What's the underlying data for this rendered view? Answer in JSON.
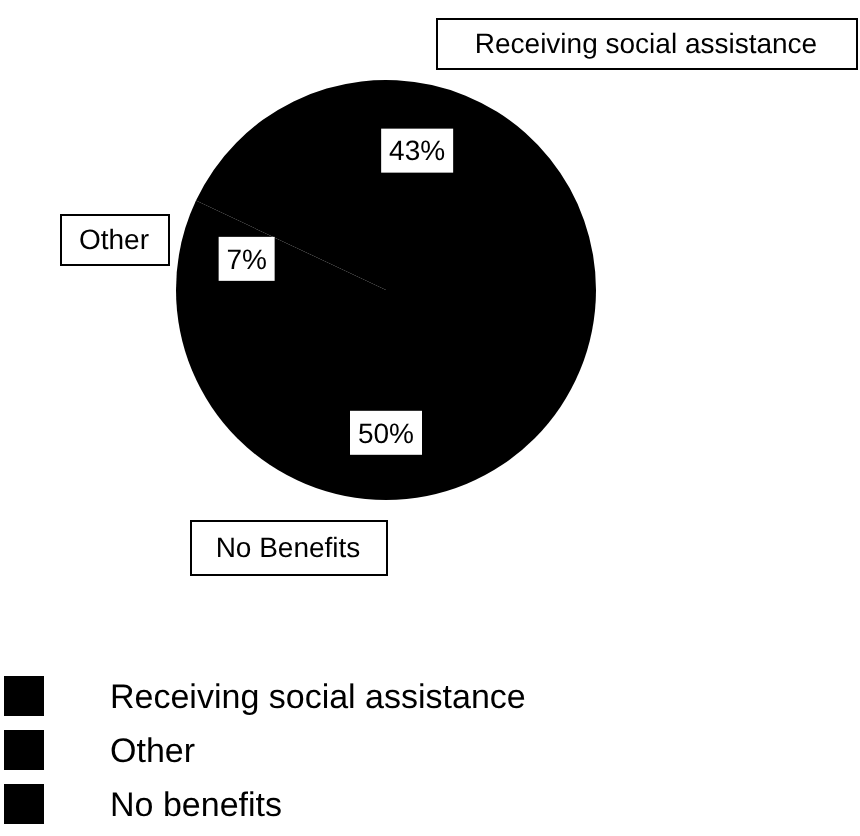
{
  "chart_data": {
    "type": "pie",
    "categories": [
      "Receiving social assistance",
      "Other",
      "No benefits"
    ],
    "values": [
      43,
      7,
      50
    ],
    "colors": [
      "#000000",
      "#000000",
      "#000000"
    ],
    "value_labels": [
      "43%",
      "7%",
      "50%"
    ],
    "annotations": [
      "Receiving social assistance",
      "Other",
      "No Benefits"
    ],
    "legend": "bottom left"
  }
}
